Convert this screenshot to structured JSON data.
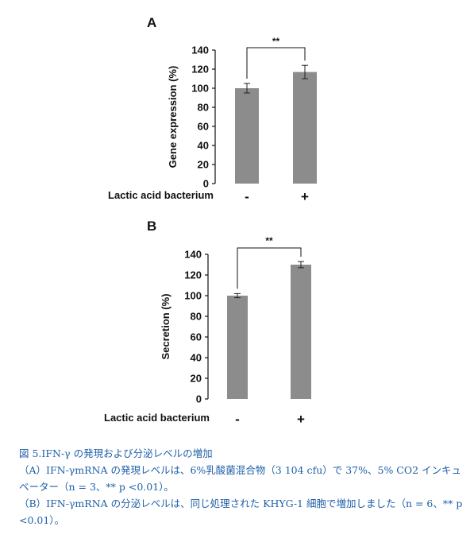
{
  "chart_data": [
    {
      "type": "bar",
      "panel": "A",
      "categories": [
        "-",
        "+"
      ],
      "values": [
        100,
        117
      ],
      "errors": [
        5,
        7
      ],
      "ylabel": "Gene expression (%)",
      "condition_label": "Lactic acid bacterium",
      "yticks": [
        "0",
        "20",
        "40",
        "60",
        "80",
        "100",
        "120",
        "140"
      ],
      "ylim": [
        0,
        140
      ],
      "significance": "**",
      "bar_color": "#8c8c8c",
      "grid": false
    },
    {
      "type": "bar",
      "panel": "B",
      "categories": [
        "-",
        "+"
      ],
      "values": [
        100,
        130
      ],
      "errors": [
        2,
        3
      ],
      "ylabel": "Secretion (%)",
      "condition_label": "Lactic acid bacterium",
      "yticks": [
        "0",
        "20",
        "40",
        "60",
        "80",
        "100",
        "120",
        "140"
      ],
      "ylim": [
        0,
        140
      ],
      "significance": "**",
      "bar_color": "#8c8c8c",
      "grid": false
    }
  ],
  "caption": {
    "title": "図 5.IFN-γ の発現および分泌レベルの増加",
    "line_a": "（A）IFN-γmRNA の発現レベルは、6%乳酸菌混合物（3 104 cfu）で 37%、5% CO2 インキュベーター（n = 3、** p <0.01）。",
    "line_b": "（B）IFN-γmRNA の分泌レベルは、同じ処理された KHYG-1 細胞で増加しました（n = 6、** p <0.01）。",
    "color": "#1f5fa8"
  }
}
